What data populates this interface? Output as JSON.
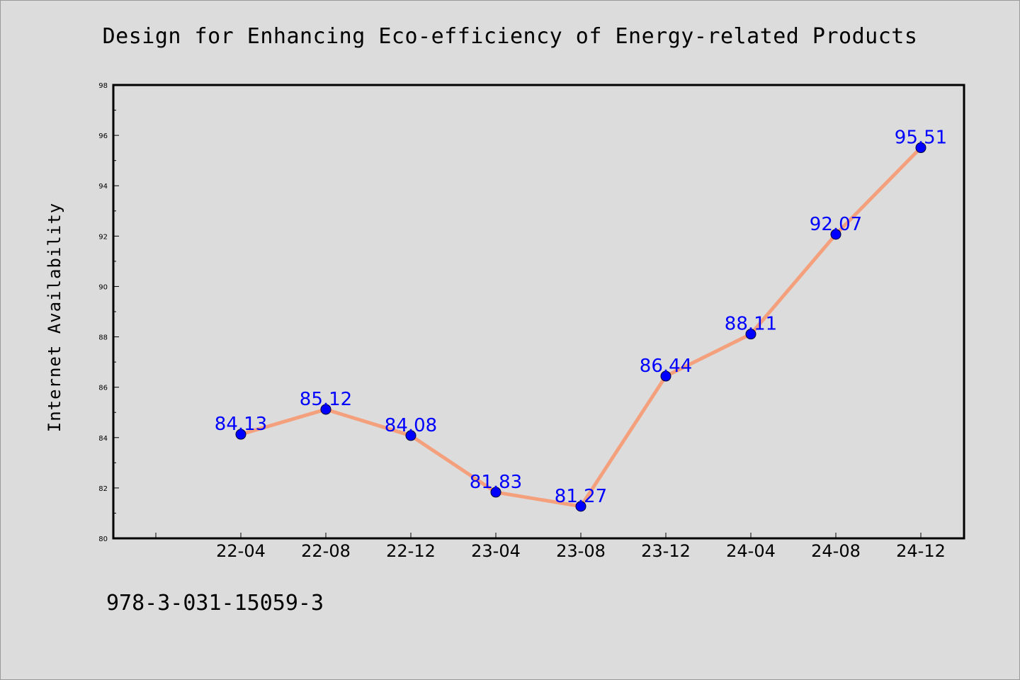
{
  "chart_data": {
    "type": "line",
    "title": "Design for Enhancing Eco-efficiency of Energy-related Products",
    "xlabel": "",
    "ylabel": "Internet Availability",
    "categories": [
      "22-04",
      "22-08",
      "22-12",
      "23-04",
      "23-08",
      "23-12",
      "24-04",
      "24-08",
      "24-12"
    ],
    "series": [
      {
        "values": [
          84.13,
          85.12,
          84.08,
          81.83,
          81.27,
          86.44,
          88.11,
          92.07,
          95.51
        ],
        "labels": [
          "84.13",
          "85.12",
          "84.08",
          "81.83",
          "81.27",
          "86.44",
          "88.11",
          "92.07",
          "95.51"
        ],
        "line_color": "#f4a07c",
        "marker_color": "#0000ff"
      }
    ],
    "ylim": [
      80,
      98
    ],
    "yticks": [
      "80",
      "82",
      "84",
      "86",
      "88",
      "90",
      "92",
      "94",
      "96",
      "98"
    ],
    "grid": false,
    "legend": "none"
  },
  "footer": {
    "code": "978-3-031-15059-3"
  }
}
